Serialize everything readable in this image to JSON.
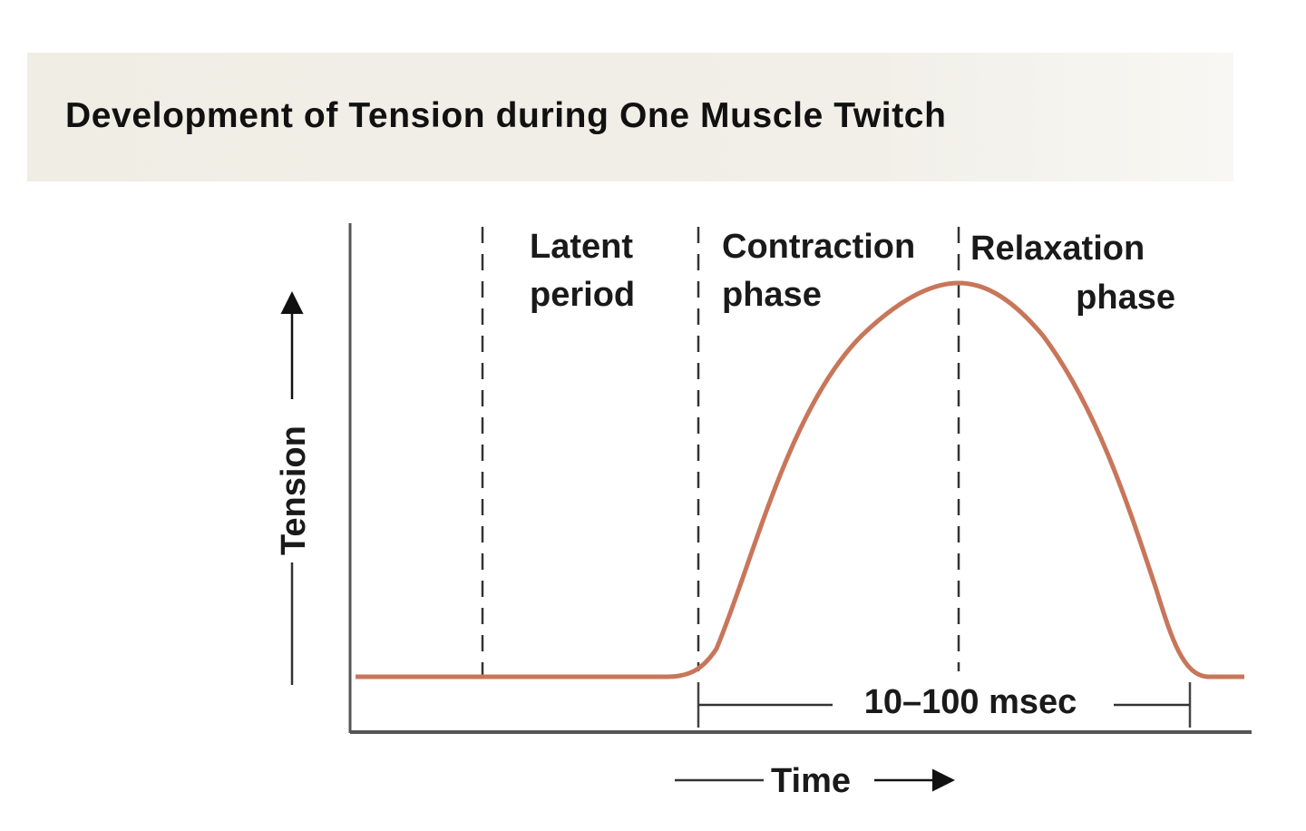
{
  "title": "Development of Tension during One Muscle Twitch",
  "y_axis_label": "Tension",
  "x_axis_label": "Time",
  "phases": [
    {
      "line1": "Latent",
      "line2": "period"
    },
    {
      "line1": "Contraction",
      "line2": "phase"
    },
    {
      "line1": "Relaxation",
      "line2": "phase"
    }
  ],
  "duration_label": "10–100 msec",
  "curve_color": "#c8765a"
}
